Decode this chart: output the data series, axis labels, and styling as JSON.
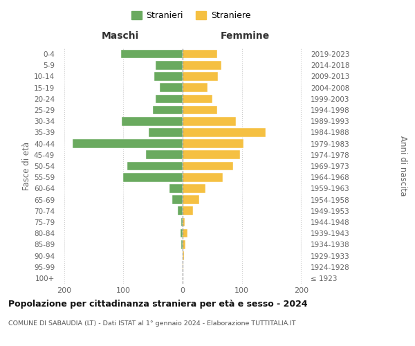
{
  "age_groups": [
    "100+",
    "95-99",
    "90-94",
    "85-89",
    "80-84",
    "75-79",
    "70-74",
    "65-69",
    "60-64",
    "55-59",
    "50-54",
    "45-49",
    "40-44",
    "35-39",
    "30-34",
    "25-29",
    "20-24",
    "15-19",
    "10-14",
    "5-9",
    "0-4"
  ],
  "birth_years": [
    "≤ 1923",
    "1924-1928",
    "1929-1933",
    "1934-1938",
    "1939-1943",
    "1944-1948",
    "1949-1953",
    "1954-1958",
    "1959-1963",
    "1964-1968",
    "1969-1973",
    "1974-1978",
    "1979-1983",
    "1984-1988",
    "1989-1993",
    "1994-1998",
    "1999-2003",
    "2004-2008",
    "2009-2013",
    "2014-2018",
    "2019-2023"
  ],
  "maschi": [
    0,
    0,
    0,
    2,
    3,
    2,
    8,
    18,
    22,
    100,
    93,
    62,
    185,
    57,
    103,
    50,
    46,
    38,
    48,
    45,
    104
  ],
  "femmine": [
    0,
    1,
    2,
    5,
    8,
    4,
    18,
    28,
    38,
    68,
    85,
    97,
    103,
    140,
    90,
    58,
    50,
    42,
    60,
    65,
    58
  ],
  "male_color": "#6aaa5f",
  "female_color": "#f5c042",
  "background_color": "#ffffff",
  "grid_color": "#cccccc",
  "title": "Popolazione per cittadinanza straniera per età e sesso - 2024",
  "subtitle": "COMUNE DI SABAUDIA (LT) - Dati ISTAT al 1° gennaio 2024 - Elaborazione TUTTITALIA.IT",
  "legend_male": "Stranieri",
  "legend_female": "Straniere",
  "label_maschi": "Maschi",
  "label_femmine": "Femmine",
  "ylabel_left": "Fasce di età",
  "ylabel_right": "Anni di nascita",
  "xlim": 210
}
